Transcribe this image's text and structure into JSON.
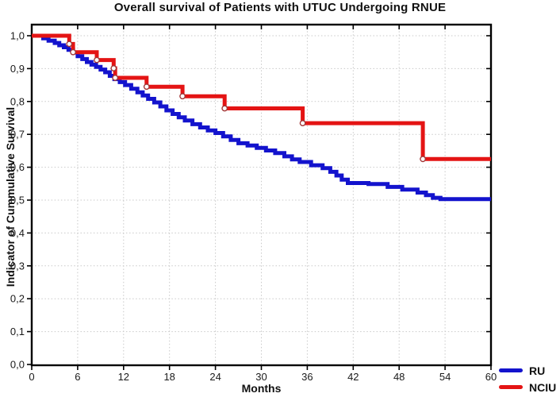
{
  "chart_data": {
    "type": "line",
    "subtype": "kaplan-meier-step-survival",
    "title": "Overall survival of Patients with UTUC Undergoing RNUE",
    "xlabel": "Months",
    "ylabel": "Indicator of Cummulative Survival",
    "xlim": [
      0,
      60
    ],
    "ylim": [
      0,
      1
    ],
    "grid": "dotted",
    "x_ticks": {
      "values": [
        0,
        6,
        12,
        18,
        24,
        30,
        36,
        42,
        48,
        54,
        60
      ],
      "labels": [
        "0",
        "6",
        "12",
        "18",
        "24",
        "30",
        "36",
        "42",
        "48",
        "54",
        "60"
      ]
    },
    "y_ticks": {
      "values": [
        1.0,
        0.9,
        0.8,
        0.7,
        0.6,
        0.5,
        0.4,
        0.3,
        0.2,
        0.1,
        0.0
      ],
      "labels": [
        "1,0",
        "0,9",
        "0,8",
        "0,7",
        "0,6",
        "0,5",
        "0,4",
        "0,3",
        "0,2",
        "0,1",
        "0,0"
      ]
    },
    "colors": {
      "grid": "#c9c9c9",
      "frame": "#000000",
      "text": "#1a1a1a",
      "blue": "#1313cd",
      "red": "#e41414"
    },
    "marker": {
      "shape": "circle",
      "fill": "#ffffff",
      "ring": "#a03636"
    },
    "legend": {
      "position": "bottom-right",
      "entries": [
        {
          "name": "RU",
          "color": "#1313cd"
        },
        {
          "name": "NCIU",
          "color": "#e41414"
        }
      ]
    },
    "series": [
      {
        "name": "RU",
        "color": "#1313cd",
        "points": [
          [
            0,
            1.0
          ],
          [
            1.5,
            0.992
          ],
          [
            2.2,
            0.985
          ],
          [
            3.0,
            0.978
          ],
          [
            3.6,
            0.971
          ],
          [
            4.2,
            0.965
          ],
          [
            4.8,
            0.957
          ],
          [
            5.4,
            0.949
          ],
          [
            6.0,
            0.938
          ],
          [
            6.6,
            0.929
          ],
          [
            7.2,
            0.92
          ],
          [
            7.8,
            0.912
          ],
          [
            8.4,
            0.905
          ],
          [
            9.0,
            0.897
          ],
          [
            9.6,
            0.889
          ],
          [
            10.2,
            0.878
          ],
          [
            10.8,
            0.868
          ],
          [
            11.5,
            0.859
          ],
          [
            12.2,
            0.85
          ],
          [
            13.0,
            0.839
          ],
          [
            13.8,
            0.828
          ],
          [
            14.5,
            0.818
          ],
          [
            15.2,
            0.808
          ],
          [
            16.0,
            0.797
          ],
          [
            16.8,
            0.785
          ],
          [
            17.6,
            0.773
          ],
          [
            18.4,
            0.762
          ],
          [
            19.2,
            0.752
          ],
          [
            20.0,
            0.742
          ],
          [
            21.0,
            0.731
          ],
          [
            22.0,
            0.721
          ],
          [
            23.0,
            0.712
          ],
          [
            24.0,
            0.704
          ],
          [
            25.0,
            0.694
          ],
          [
            26.0,
            0.683
          ],
          [
            27.0,
            0.673
          ],
          [
            28.2,
            0.666
          ],
          [
            29.4,
            0.659
          ],
          [
            30.6,
            0.651
          ],
          [
            31.8,
            0.643
          ],
          [
            33.0,
            0.633
          ],
          [
            34.0,
            0.624
          ],
          [
            35.0,
            0.616
          ],
          [
            36.5,
            0.606
          ],
          [
            38.0,
            0.597
          ],
          [
            39.0,
            0.586
          ],
          [
            39.8,
            0.575
          ],
          [
            40.5,
            0.562
          ],
          [
            41.3,
            0.552
          ],
          [
            44.0,
            0.549
          ],
          [
            46.5,
            0.54
          ],
          [
            48.4,
            0.532
          ],
          [
            50.4,
            0.523
          ],
          [
            51.5,
            0.515
          ],
          [
            52.4,
            0.507
          ],
          [
            53.4,
            0.503
          ],
          [
            60,
            0.503
          ]
        ]
      },
      {
        "name": "NCIU",
        "color": "#e41414",
        "points": [
          [
            0,
            1.0
          ],
          [
            4.9,
            0.975
          ],
          [
            5.4,
            0.95
          ],
          [
            8.5,
            0.926
          ],
          [
            10.7,
            0.901
          ],
          [
            10.9,
            0.872
          ],
          [
            15.0,
            0.845
          ],
          [
            19.7,
            0.816
          ],
          [
            25.2,
            0.779
          ],
          [
            35.4,
            0.734
          ],
          [
            51.1,
            0.625
          ],
          [
            60,
            0.625
          ]
        ],
        "markers": [
          [
            4.9,
            0.975
          ],
          [
            5.4,
            0.95
          ],
          [
            8.5,
            0.926
          ],
          [
            10.7,
            0.901
          ],
          [
            10.9,
            0.872
          ],
          [
            15.0,
            0.845
          ],
          [
            19.7,
            0.816
          ],
          [
            25.2,
            0.779
          ],
          [
            35.4,
            0.734
          ],
          [
            51.1,
            0.625
          ]
        ]
      }
    ]
  }
}
